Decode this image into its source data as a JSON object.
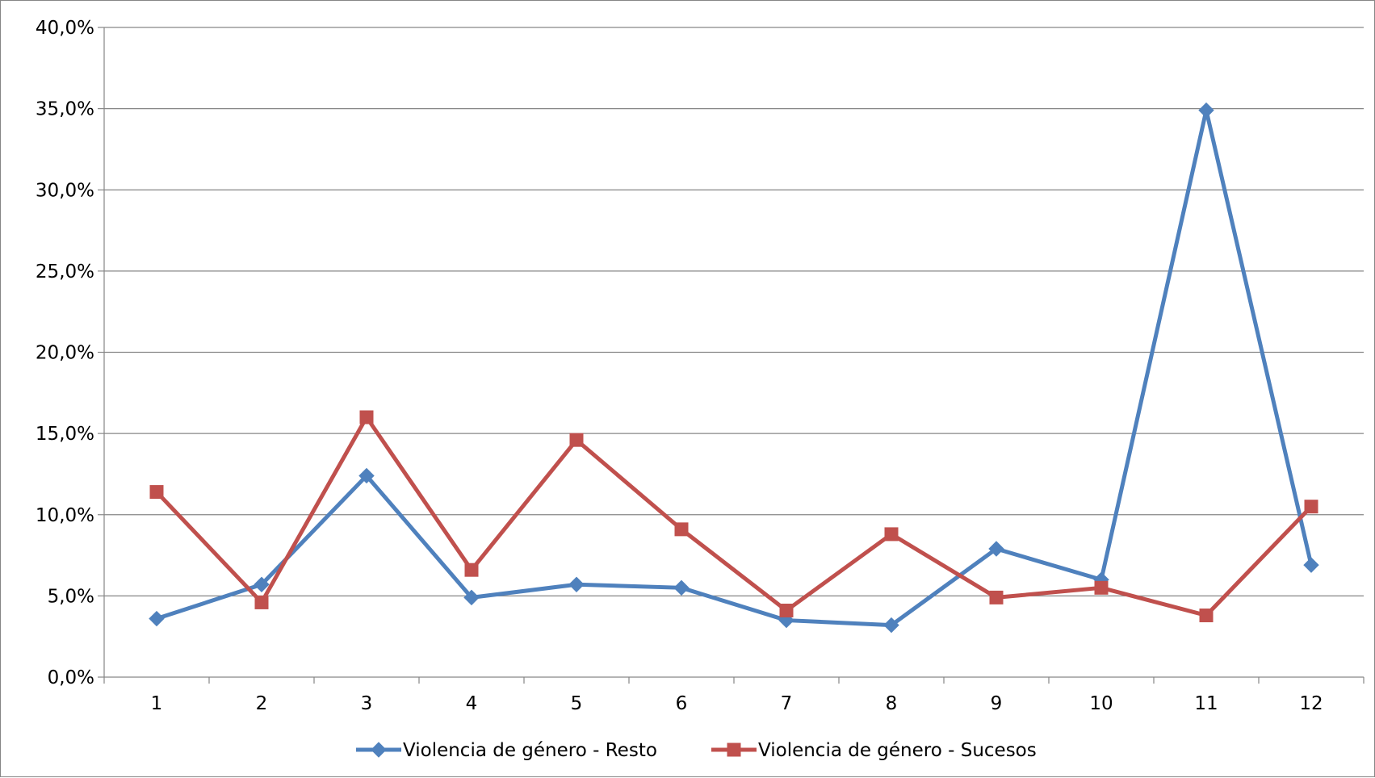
{
  "chart_data": {
    "type": "line",
    "title": "",
    "xlabel": "",
    "ylabel": "",
    "categories": [
      "1",
      "2",
      "3",
      "4",
      "5",
      "6",
      "7",
      "8",
      "9",
      "10",
      "11",
      "12"
    ],
    "ylim": [
      0,
      40
    ],
    "y_ticks": [
      0,
      5,
      10,
      15,
      20,
      25,
      30,
      35,
      40
    ],
    "y_tick_labels": [
      "0,0%",
      "5,0%",
      "10,0%",
      "15,0%",
      "20,0%",
      "25,0%",
      "30,0%",
      "35,0%",
      "40,0%"
    ],
    "y_unit": "percent",
    "grid": "horizontal",
    "legend_position": "bottom",
    "series": [
      {
        "name": "Violencia de género - Resto",
        "color": "#4F81BD",
        "marker": "diamond",
        "values": [
          3.6,
          5.7,
          12.4,
          4.9,
          5.7,
          5.5,
          3.5,
          3.2,
          7.9,
          6.0,
          34.9,
          6.9
        ]
      },
      {
        "name": "Violencia de género - Sucesos",
        "color": "#C0504D",
        "marker": "square",
        "values": [
          11.4,
          4.6,
          16.0,
          6.6,
          14.6,
          9.1,
          4.1,
          8.8,
          4.9,
          5.5,
          3.8,
          10.5
        ]
      }
    ]
  }
}
